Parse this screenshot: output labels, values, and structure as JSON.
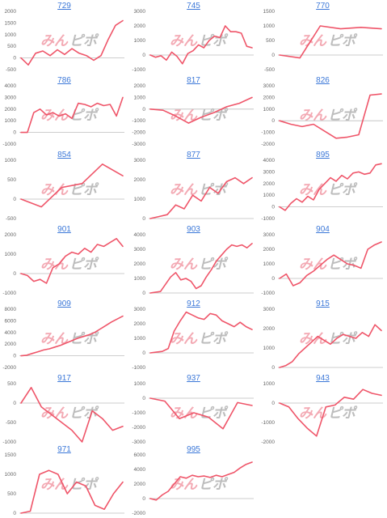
{
  "colors": {
    "line": "#ef5569",
    "zero_line": "#bdbdbd",
    "title_link": "#3c78d8",
    "watermark_red": "#f3a9b3",
    "watermark_grey": "#bdbdbd"
  },
  "watermark": {
    "part1": "みん",
    "part2": "ピポ"
  },
  "chart_data": [
    {
      "type": "line",
      "title": "729",
      "ylim": [
        -500,
        2000
      ],
      "yticks": [
        2000,
        1500,
        1000,
        500,
        0,
        -500
      ],
      "values": [
        0,
        -300,
        200,
        300,
        100,
        350,
        150,
        400,
        200,
        100,
        -100,
        100,
        800,
        1400,
        1600
      ]
    },
    {
      "type": "line",
      "title": "745",
      "ylim": [
        -1000,
        3000
      ],
      "yticks": [
        3000,
        2000,
        1000,
        0,
        -1000
      ],
      "values": [
        0,
        -150,
        -50,
        -350,
        200,
        -100,
        -600,
        100,
        300,
        700,
        500,
        1000,
        1300,
        1200,
        2000,
        1600,
        1600,
        1500,
        600,
        500
      ]
    },
    {
      "type": "line",
      "title": "770",
      "ylim": [
        -500,
        1500
      ],
      "yticks": [
        1500,
        1000,
        500,
        0,
        -500
      ],
      "values": [
        0,
        -100,
        1000,
        900,
        950,
        900
      ]
    },
    {
      "type": "line",
      "title": "786",
      "ylim": [
        -1000,
        4000
      ],
      "yticks": [
        4000,
        3000,
        2000,
        1000,
        0,
        -1000
      ],
      "values": [
        0,
        0,
        1700,
        2000,
        1500,
        1700,
        1400,
        1600,
        1200,
        2500,
        2400,
        2200,
        2500,
        2300,
        2400,
        1400,
        3000
      ]
    },
    {
      "type": "line",
      "title": "817",
      "ylim": [
        -3000,
        2000
      ],
      "yticks": [
        2000,
        1000,
        0,
        -1000,
        -2000,
        -3000
      ],
      "values": [
        0,
        -100,
        -600,
        -1200,
        -700,
        -300,
        200,
        500,
        1000
      ]
    },
    {
      "type": "line",
      "title": "826",
      "ylim": [
        -2000,
        3000
      ],
      "yticks": [
        3000,
        2000,
        1000,
        0,
        -1000,
        -2000
      ],
      "values": [
        0,
        -300,
        -500,
        -300,
        -900,
        -1500,
        -1400,
        -1200,
        2200,
        2300
      ]
    },
    {
      "type": "line",
      "title": "854",
      "ylim": [
        -500,
        1000
      ],
      "yticks": [
        1000,
        500,
        0,
        -500
      ],
      "values": [
        0,
        -200,
        300,
        400,
        900,
        600
      ]
    },
    {
      "type": "line",
      "title": "877",
      "ylim": [
        0,
        3000
      ],
      "yticks": [
        3000,
        2000,
        1000,
        0
      ],
      "values": [
        0,
        100,
        200,
        700,
        500,
        1200,
        900,
        1600,
        1300,
        1900,
        2100,
        1800,
        2100
      ]
    },
    {
      "type": "line",
      "title": "895",
      "ylim": [
        -1000,
        4000
      ],
      "yticks": [
        4000,
        3000,
        2000,
        1000,
        0,
        -1000
      ],
      "values": [
        0,
        -300,
        300,
        700,
        400,
        900,
        600,
        1500,
        2000,
        2500,
        2200,
        2700,
        2400,
        2900,
        3000,
        2800,
        2900,
        3600,
        3700
      ]
    },
    {
      "type": "line",
      "title": "901",
      "ylim": [
        -1000,
        2000
      ],
      "yticks": [
        2000,
        1000,
        0,
        -1000
      ],
      "values": [
        0,
        -100,
        -400,
        -300,
        -500,
        300,
        500,
        900,
        1100,
        1000,
        1300,
        1100,
        1500,
        1400,
        1600,
        1800,
        1400
      ]
    },
    {
      "type": "line",
      "title": "903",
      "ylim": [
        0,
        4000
      ],
      "yticks": [
        4000,
        3000,
        2000,
        1000,
        0
      ],
      "values": [
        0,
        50,
        100,
        600,
        1100,
        1400,
        900,
        1000,
        800,
        300,
        500,
        1100,
        1600,
        2200,
        2600,
        3000,
        3300,
        3200,
        3300,
        3100,
        3400
      ]
    },
    {
      "type": "line",
      "title": "904",
      "ylim": [
        -1000,
        3000
      ],
      "yticks": [
        3000,
        2000,
        1000,
        0,
        -1000
      ],
      "values": [
        0,
        300,
        -500,
        -300,
        200,
        500,
        900,
        1300,
        1600,
        1300,
        1000,
        900,
        700,
        2000,
        2300,
        2500
      ]
    },
    {
      "type": "line",
      "title": "909",
      "ylim": [
        -2000,
        8000
      ],
      "yticks": [
        8000,
        6000,
        4000,
        2000,
        0,
        -2000
      ],
      "values": [
        0,
        100,
        400,
        700,
        1000,
        1200,
        1500,
        1800,
        2200,
        2600,
        3000,
        3300,
        3600,
        4000,
        4600,
        5200,
        5800,
        6300,
        6800
      ]
    },
    {
      "type": "line",
      "title": "912",
      "ylim": [
        -1000,
        3000
      ],
      "yticks": [
        3000,
        2000,
        1000,
        0,
        -1000
      ],
      "values": [
        0,
        50,
        100,
        300,
        1500,
        2200,
        2800,
        2600,
        2400,
        2300,
        2700,
        2600,
        2200,
        2000,
        1800,
        2100,
        1800,
        1600
      ]
    },
    {
      "type": "line",
      "title": "915",
      "ylim": [
        0,
        3000
      ],
      "yticks": [
        3000,
        2000,
        1000,
        0
      ],
      "values": [
        0,
        100,
        300,
        700,
        1000,
        1300,
        1600,
        1400,
        1200,
        1500,
        1700,
        1600,
        1500,
        1800,
        1600,
        2200,
        1900
      ]
    },
    {
      "type": "line",
      "title": "917",
      "ylim": [
        -1000,
        500
      ],
      "yticks": [
        500,
        0,
        -500,
        -1000
      ],
      "values": [
        0,
        400,
        -100,
        -300,
        -500,
        -700,
        -1000,
        -200,
        -400,
        -700,
        -600
      ]
    },
    {
      "type": "line",
      "title": "937",
      "ylim": [
        -3000,
        1000
      ],
      "yticks": [
        1000,
        0,
        -1000,
        -2000,
        -3000
      ],
      "values": [
        0,
        -200,
        -1400,
        -1000,
        -1300,
        -2100,
        -300,
        -500
      ]
    },
    {
      "type": "line",
      "title": "943",
      "ylim": [
        -2000,
        1000
      ],
      "yticks": [
        1000,
        0,
        -1000,
        -2000
      ],
      "values": [
        0,
        -200,
        -800,
        -1300,
        -1700,
        -200,
        -100,
        300,
        200,
        700,
        500,
        400
      ]
    },
    {
      "type": "line",
      "title": "971",
      "ylim": [
        0,
        1500
      ],
      "yticks": [
        1500,
        1000,
        500,
        0
      ],
      "values": [
        0,
        50,
        1000,
        1100,
        1000,
        500,
        800,
        700,
        200,
        100,
        500,
        800
      ]
    },
    {
      "type": "line",
      "title": "995",
      "ylim": [
        -2000,
        6000
      ],
      "yticks": [
        6000,
        4000,
        2000,
        0,
        -2000
      ],
      "values": [
        0,
        -200,
        500,
        1000,
        2000,
        3000,
        2800,
        3200,
        3000,
        3100,
        2900,
        3200,
        3000,
        3300,
        3600,
        4200,
        4700,
        5000
      ]
    }
  ]
}
